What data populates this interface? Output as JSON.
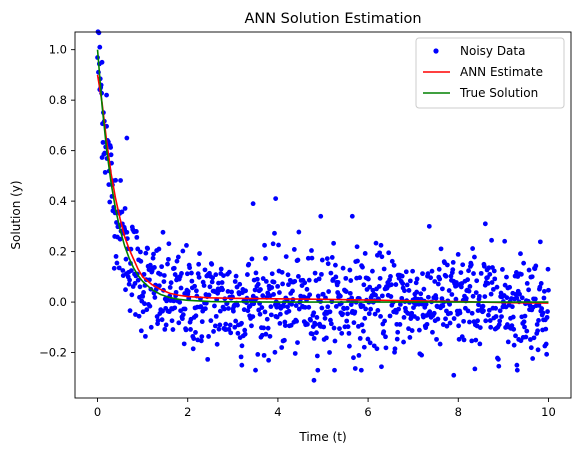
{
  "chart_data": {
    "type": "line",
    "title": "ANN Solution Estimation",
    "xlabel": "Time (t)",
    "ylabel": "Solution (y)",
    "xlim": [
      -0.5,
      10.5
    ],
    "ylim": [
      -0.38,
      1.07
    ],
    "xticks": [
      0,
      2,
      4,
      6,
      8,
      10
    ],
    "yticks": [
      -0.2,
      0.0,
      0.2,
      0.4,
      0.6,
      0.8,
      1.0
    ],
    "xtick_labels": [
      "0",
      "2",
      "4",
      "6",
      "8",
      "10"
    ],
    "ytick_labels": [
      "−0.2",
      "0.0",
      "0.2",
      "0.4",
      "0.6",
      "0.8",
      "1.0"
    ],
    "grid": false,
    "legend_position": "top-right",
    "colors": {
      "noisy": "#0000ff",
      "ann": "#ff0000",
      "true": "#008000"
    },
    "series": [
      {
        "name": "Noisy Data",
        "style": "scatter",
        "color": "#0000ff",
        "model": {
          "decay_rate": 2.5,
          "noise_std": 0.1,
          "n_points": 1000,
          "t_start": 0,
          "t_end": 10
        },
        "highlights": [
          {
            "x": 0.05,
            "y": 1.01
          },
          {
            "x": 0.1,
            "y": 0.95
          },
          {
            "x": 0.2,
            "y": 0.82
          },
          {
            "x": 0.65,
            "y": 0.65
          },
          {
            "x": 3.45,
            "y": 0.39
          },
          {
            "x": 3.95,
            "y": 0.41
          },
          {
            "x": 4.95,
            "y": 0.34
          },
          {
            "x": 5.65,
            "y": 0.34
          },
          {
            "x": 8.6,
            "y": 0.31
          },
          {
            "x": 4.8,
            "y": -0.31
          },
          {
            "x": 7.9,
            "y": -0.29
          },
          {
            "x": 3.2,
            "y": -0.25
          },
          {
            "x": 5.85,
            "y": -0.27
          },
          {
            "x": 9.3,
            "y": -0.25
          }
        ]
      },
      {
        "name": "ANN Estimate",
        "style": "line",
        "color": "#ff0000",
        "x": [
          0,
          0.1,
          0.2,
          0.3,
          0.4,
          0.5,
          0.6,
          0.7,
          0.8,
          0.9,
          1.0,
          1.2,
          1.4,
          1.6,
          1.8,
          2.0,
          2.5,
          3.0,
          3.5,
          4.0,
          5.0,
          6.0,
          7.0,
          8.0,
          9.0,
          10.0
        ],
        "y": [
          0.9,
          0.79,
          0.64,
          0.51,
          0.41,
          0.33,
          0.26,
          0.21,
          0.17,
          0.13,
          0.1,
          0.07,
          0.05,
          0.035,
          0.027,
          0.022,
          0.017,
          0.015,
          0.014,
          0.013,
          0.011,
          0.008,
          0.005,
          0.002,
          -0.002,
          -0.004
        ]
      },
      {
        "name": "True Solution",
        "style": "line",
        "color": "#008000",
        "x": [
          0,
          0.1,
          0.2,
          0.3,
          0.4,
          0.5,
          0.6,
          0.7,
          0.8,
          0.9,
          1.0,
          1.2,
          1.4,
          1.6,
          1.8,
          2.0,
          2.5,
          3.0,
          4.0,
          5.0,
          6.0,
          8.0,
          10.0
        ],
        "y": [
          1.0,
          0.779,
          0.607,
          0.472,
          0.368,
          0.287,
          0.223,
          0.174,
          0.135,
          0.105,
          0.082,
          0.05,
          0.03,
          0.018,
          0.011,
          0.007,
          0.002,
          0.001,
          0.0,
          0.0,
          0.0,
          0.0,
          0.0
        ]
      }
    ]
  }
}
